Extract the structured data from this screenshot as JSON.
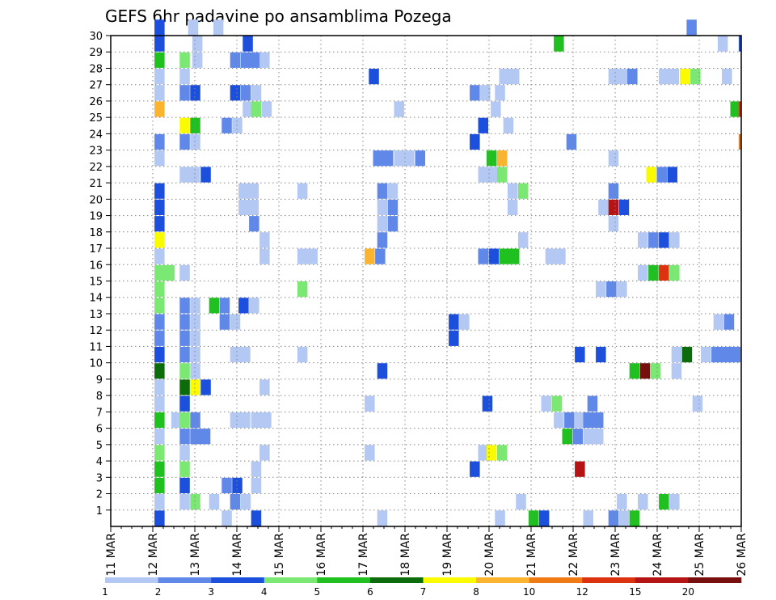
{
  "chart_data": {
    "type": "heatmap",
    "title": "GEFS 6hr padavine po ansamblima Pozega",
    "xlabel": "",
    "ylabel": "",
    "x_tick_labels": [
      "11 MAR",
      "12 MAR",
      "13 MAR",
      "14 MAR",
      "15 MAR",
      "16 MAR",
      "17 MAR",
      "18 MAR",
      "19 MAR",
      "20 MAR",
      "21 MAR",
      "22 MAR",
      "23 MAR",
      "24 MAR",
      "25 MAR",
      "26 MAR"
    ],
    "x_range_days": [
      0,
      15
    ],
    "y_tick_labels": [
      "1",
      "2",
      "3",
      "4",
      "5",
      "6",
      "7",
      "8",
      "9",
      "10",
      "11",
      "12",
      "13",
      "14",
      "15",
      "16",
      "17",
      "18",
      "19",
      "20",
      "21",
      "22",
      "23",
      "24",
      "25",
      "26",
      "27",
      "28",
      "29",
      "30"
    ],
    "y_range": [
      0,
      30
    ],
    "grid": true,
    "legend": {
      "placement": "bottom",
      "labels": [
        "1",
        "2",
        "3",
        "4",
        "5",
        "6",
        "7",
        "8",
        "10",
        "12",
        "15",
        "20"
      ],
      "colors": [
        "#b4c8f4",
        "#6088e8",
        "#1c50dc",
        "#7ae872",
        "#20c020",
        "#0c6c0c",
        "#fafa00",
        "#fab430",
        "#f07a14",
        "#dc3210",
        "#b41414",
        "#780f0f"
      ]
    },
    "series_note": "cells: [member, start_day, span_days, color_index]",
    "cells": [
      [
        30,
        1.04,
        0.24,
        2
      ],
      [
        30,
        1.84,
        0.24,
        0
      ],
      [
        30,
        2.44,
        0.24,
        0
      ],
      [
        30,
        13.7,
        0.24,
        1
      ],
      [
        29,
        1.04,
        0.24,
        2
      ],
      [
        29,
        1.94,
        0.24,
        0
      ],
      [
        29,
        3.14,
        0.24,
        2
      ],
      [
        29,
        10.54,
        0.24,
        4
      ],
      [
        29,
        14.44,
        0.24,
        0
      ],
      [
        29,
        14.94,
        0.24,
        2
      ],
      [
        28,
        1.04,
        0.24,
        4
      ],
      [
        28,
        1.64,
        0.24,
        3
      ],
      [
        28,
        1.94,
        0.24,
        0
      ],
      [
        28,
        2.84,
        0.24,
        1
      ],
      [
        28,
        3.09,
        0.48,
        1
      ],
      [
        28,
        3.54,
        0.24,
        0
      ],
      [
        27,
        1.04,
        0.24,
        0
      ],
      [
        27,
        1.64,
        0.24,
        0
      ],
      [
        27,
        6.14,
        0.24,
        2
      ],
      [
        27,
        9.24,
        0.48,
        0
      ],
      [
        27,
        11.84,
        0.48,
        0
      ],
      [
        27,
        12.29,
        0.24,
        1
      ],
      [
        27,
        13.04,
        0.48,
        0
      ],
      [
        27,
        13.54,
        0.24,
        6
      ],
      [
        27,
        13.79,
        0.24,
        3
      ],
      [
        27,
        14.54,
        0.24,
        0
      ],
      [
        26,
        1.04,
        0.24,
        0
      ],
      [
        26,
        1.64,
        0.24,
        1
      ],
      [
        26,
        1.89,
        0.24,
        2
      ],
      [
        26,
        2.84,
        0.24,
        2
      ],
      [
        26,
        3.09,
        0.24,
        1
      ],
      [
        26,
        3.34,
        0.24,
        0
      ],
      [
        26,
        8.54,
        0.24,
        1
      ],
      [
        26,
        8.79,
        0.24,
        0
      ],
      [
        26,
        9.14,
        0.24,
        0
      ],
      [
        25,
        1.04,
        0.24,
        7
      ],
      [
        25,
        3.14,
        0.24,
        0
      ],
      [
        25,
        3.34,
        0.24,
        3
      ],
      [
        25,
        3.59,
        0.24,
        0
      ],
      [
        25,
        6.74,
        0.24,
        0
      ],
      [
        25,
        9.04,
        0.24,
        0
      ],
      [
        25,
        14.74,
        0.24,
        4
      ],
      [
        25,
        14.94,
        0.12,
        9
      ],
      [
        24,
        1.64,
        0.24,
        6
      ],
      [
        24,
        1.89,
        0.24,
        4
      ],
      [
        24,
        2.64,
        0.24,
        1
      ],
      [
        24,
        2.89,
        0.24,
        0
      ],
      [
        24,
        8.74,
        0.24,
        2
      ],
      [
        24,
        9.34,
        0.24,
        0
      ],
      [
        23,
        1.04,
        0.24,
        1
      ],
      [
        23,
        1.64,
        0.24,
        1
      ],
      [
        23,
        1.89,
        0.24,
        0
      ],
      [
        23,
        8.54,
        0.24,
        2
      ],
      [
        23,
        10.84,
        0.24,
        1
      ],
      [
        23,
        14.94,
        0.12,
        8
      ],
      [
        22,
        1.04,
        0.24,
        0
      ],
      [
        22,
        6.24,
        0.48,
        1
      ],
      [
        22,
        6.74,
        0.48,
        0
      ],
      [
        22,
        7.24,
        0.24,
        1
      ],
      [
        22,
        8.94,
        0.24,
        4
      ],
      [
        22,
        9.19,
        0.24,
        7
      ],
      [
        22,
        11.84,
        0.24,
        0
      ],
      [
        21,
        1.64,
        0.48,
        0
      ],
      [
        21,
        2.14,
        0.24,
        2
      ],
      [
        21,
        8.74,
        0.48,
        0
      ],
      [
        21,
        9.19,
        0.24,
        3
      ],
      [
        21,
        12.74,
        0.24,
        6
      ],
      [
        21,
        12.99,
        0.24,
        1
      ],
      [
        21,
        13.24,
        0.24,
        2
      ],
      [
        20,
        1.04,
        0.24,
        2
      ],
      [
        20,
        3.04,
        0.48,
        0
      ],
      [
        20,
        4.44,
        0.24,
        0
      ],
      [
        20,
        6.34,
        0.24,
        1
      ],
      [
        20,
        6.59,
        0.24,
        0
      ],
      [
        20,
        9.44,
        0.24,
        0
      ],
      [
        20,
        9.69,
        0.24,
        3
      ],
      [
        20,
        11.84,
        0.24,
        1
      ],
      [
        19,
        1.04,
        0.24,
        2
      ],
      [
        19,
        3.04,
        0.48,
        0
      ],
      [
        19,
        6.34,
        0.24,
        0
      ],
      [
        19,
        6.59,
        0.24,
        1
      ],
      [
        19,
        9.44,
        0.24,
        0
      ],
      [
        19,
        11.6,
        0.24,
        0
      ],
      [
        19,
        11.84,
        0.24,
        10
      ],
      [
        19,
        12.09,
        0.24,
        2
      ],
      [
        18,
        1.04,
        0.24,
        2
      ],
      [
        18,
        3.29,
        0.24,
        1
      ],
      [
        18,
        6.34,
        0.24,
        0
      ],
      [
        18,
        6.59,
        0.24,
        1
      ],
      [
        18,
        11.84,
        0.24,
        0
      ],
      [
        17,
        1.04,
        0.24,
        6
      ],
      [
        17,
        3.54,
        0.24,
        0
      ],
      [
        17,
        6.34,
        0.24,
        1
      ],
      [
        17,
        9.69,
        0.24,
        0
      ],
      [
        17,
        12.54,
        0.24,
        0
      ],
      [
        17,
        12.79,
        0.24,
        1
      ],
      [
        17,
        13.04,
        0.24,
        2
      ],
      [
        17,
        13.29,
        0.24,
        0
      ],
      [
        16,
        1.04,
        0.24,
        0
      ],
      [
        16,
        3.54,
        0.24,
        0
      ],
      [
        16,
        4.44,
        0.48,
        0
      ],
      [
        16,
        6.04,
        0.24,
        7
      ],
      [
        16,
        6.29,
        0.24,
        1
      ],
      [
        16,
        8.74,
        0.24,
        1
      ],
      [
        16,
        8.99,
        0.24,
        2
      ],
      [
        16,
        9.24,
        0.48,
        4
      ],
      [
        16,
        10.34,
        0.48,
        0
      ],
      [
        15,
        1.04,
        0.48,
        3
      ],
      [
        15,
        1.64,
        0.24,
        0
      ],
      [
        15,
        12.54,
        0.24,
        0
      ],
      [
        15,
        12.79,
        0.24,
        4
      ],
      [
        15,
        13.04,
        0.24,
        9
      ],
      [
        15,
        13.29,
        0.24,
        3
      ],
      [
        14,
        1.04,
        0.24,
        3
      ],
      [
        14,
        4.44,
        0.24,
        3
      ],
      [
        14,
        11.54,
        0.24,
        0
      ],
      [
        14,
        11.79,
        0.24,
        1
      ],
      [
        14,
        12.04,
        0.24,
        0
      ],
      [
        13,
        1.04,
        0.24,
        3
      ],
      [
        13,
        1.64,
        0.24,
        1
      ],
      [
        13,
        1.89,
        0.24,
        0
      ],
      [
        13,
        2.34,
        0.24,
        4
      ],
      [
        13,
        2.59,
        0.24,
        1
      ],
      [
        13,
        3.04,
        0.24,
        2
      ],
      [
        13,
        3.29,
        0.24,
        0
      ],
      [
        12,
        1.04,
        0.24,
        1
      ],
      [
        12,
        1.64,
        0.24,
        1
      ],
      [
        12,
        1.89,
        0.24,
        0
      ],
      [
        12,
        2.59,
        0.24,
        1
      ],
      [
        12,
        2.84,
        0.24,
        0
      ],
      [
        12,
        8.04,
        0.24,
        2
      ],
      [
        12,
        8.29,
        0.24,
        0
      ],
      [
        12,
        14.34,
        0.24,
        0
      ],
      [
        12,
        14.59,
        0.24,
        1
      ],
      [
        11,
        1.04,
        0.24,
        1
      ],
      [
        11,
        1.64,
        0.24,
        1
      ],
      [
        11,
        1.89,
        0.24,
        0
      ],
      [
        11,
        8.04,
        0.24,
        2
      ],
      [
        10,
        1.04,
        0.24,
        2
      ],
      [
        10,
        1.64,
        0.24,
        1
      ],
      [
        10,
        1.89,
        0.24,
        0
      ],
      [
        10,
        2.84,
        0.48,
        0
      ],
      [
        10,
        4.44,
        0.24,
        0
      ],
      [
        10,
        11.04,
        0.24,
        2
      ],
      [
        10,
        11.54,
        0.24,
        2
      ],
      [
        10,
        13.34,
        0.24,
        0
      ],
      [
        10,
        13.59,
        0.24,
        5
      ],
      [
        10,
        14.04,
        0.24,
        0
      ],
      [
        10,
        14.29,
        0.48,
        1
      ],
      [
        10,
        14.74,
        0.24,
        1
      ],
      [
        9,
        1.04,
        0.24,
        5
      ],
      [
        9,
        1.64,
        0.24,
        3
      ],
      [
        9,
        1.89,
        0.24,
        0
      ],
      [
        9,
        6.34,
        0.24,
        2
      ],
      [
        9,
        12.34,
        0.24,
        4
      ],
      [
        9,
        12.59,
        0.24,
        11
      ],
      [
        9,
        12.84,
        0.24,
        3
      ],
      [
        9,
        13.34,
        0.24,
        0
      ],
      [
        8,
        1.04,
        0.24,
        0
      ],
      [
        8,
        1.64,
        0.24,
        5
      ],
      [
        8,
        1.89,
        0.24,
        6
      ],
      [
        8,
        2.14,
        0.24,
        2
      ],
      [
        8,
        3.54,
        0.24,
        0
      ],
      [
        7,
        1.04,
        0.24,
        0
      ],
      [
        7,
        1.64,
        0.24,
        2
      ],
      [
        7,
        6.04,
        0.24,
        0
      ],
      [
        7,
        8.84,
        0.24,
        2
      ],
      [
        7,
        10.24,
        0.24,
        0
      ],
      [
        7,
        10.49,
        0.24,
        3
      ],
      [
        7,
        11.34,
        0.24,
        1
      ],
      [
        7,
        13.84,
        0.24,
        0
      ],
      [
        6,
        1.04,
        0.24,
        4
      ],
      [
        6,
        1.44,
        0.24,
        0
      ],
      [
        6,
        1.64,
        0.24,
        3
      ],
      [
        6,
        1.89,
        0.24,
        1
      ],
      [
        6,
        2.84,
        0.48,
        0
      ],
      [
        6,
        3.34,
        0.48,
        0
      ],
      [
        6,
        10.54,
        0.24,
        0
      ],
      [
        6,
        10.79,
        0.24,
        1
      ],
      [
        6,
        11.04,
        0.24,
        0
      ],
      [
        6,
        11.24,
        0.48,
        1
      ],
      [
        5,
        1.04,
        0.24,
        0
      ],
      [
        5,
        1.64,
        0.24,
        1
      ],
      [
        5,
        1.89,
        0.48,
        1
      ],
      [
        5,
        10.74,
        0.24,
        4
      ],
      [
        5,
        10.99,
        0.24,
        1
      ],
      [
        5,
        11.24,
        0.48,
        0
      ],
      [
        4,
        1.04,
        0.24,
        3
      ],
      [
        4,
        1.64,
        0.24,
        0
      ],
      [
        4,
        3.54,
        0.24,
        0
      ],
      [
        4,
        6.04,
        0.24,
        0
      ],
      [
        4,
        8.74,
        0.24,
        0
      ],
      [
        4,
        8.94,
        0.24,
        6
      ],
      [
        4,
        9.19,
        0.24,
        3
      ],
      [
        3,
        1.04,
        0.24,
        4
      ],
      [
        3,
        1.64,
        0.24,
        3
      ],
      [
        3,
        3.34,
        0.24,
        0
      ],
      [
        3,
        8.54,
        0.24,
        2
      ],
      [
        3,
        11.04,
        0.24,
        10
      ],
      [
        2,
        1.04,
        0.24,
        4
      ],
      [
        2,
        1.64,
        0.24,
        2
      ],
      [
        2,
        2.64,
        0.24,
        1
      ],
      [
        2,
        2.89,
        0.24,
        2
      ],
      [
        2,
        3.34,
        0.24,
        0
      ],
      [
        1,
        1.04,
        0.24,
        0
      ],
      [
        1,
        1.64,
        0.24,
        0
      ],
      [
        1,
        1.89,
        0.24,
        3
      ],
      [
        1,
        2.34,
        0.24,
        0
      ],
      [
        1,
        2.84,
        0.24,
        1
      ],
      [
        1,
        3.09,
        0.24,
        0
      ],
      [
        1,
        9.64,
        0.24,
        0
      ],
      [
        1,
        12.04,
        0.24,
        0
      ],
      [
        1,
        12.54,
        0.24,
        0
      ],
      [
        1,
        13.04,
        0.24,
        4
      ],
      [
        1,
        13.29,
        0.24,
        0
      ],
      [
        0,
        1.04,
        0.24,
        2
      ],
      [
        0,
        2.64,
        0.24,
        0
      ],
      [
        0,
        3.34,
        0.24,
        2
      ],
      [
        0,
        6.34,
        0.24,
        0
      ],
      [
        0,
        9.14,
        0.24,
        0
      ],
      [
        0,
        9.94,
        0.24,
        4
      ],
      [
        0,
        10.19,
        0.24,
        2
      ],
      [
        0,
        11.24,
        0.24,
        0
      ],
      [
        0,
        11.84,
        0.24,
        1
      ],
      [
        0,
        12.09,
        0.24,
        0
      ],
      [
        0,
        12.34,
        0.24,
        4
      ]
    ]
  }
}
